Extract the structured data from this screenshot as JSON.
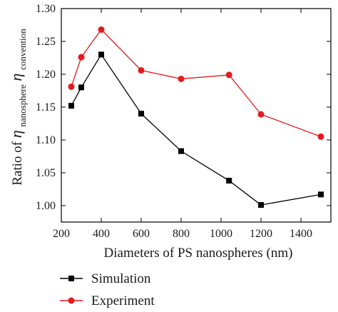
{
  "chart_data": {
    "type": "line",
    "xlabel": "Diameters of PS nanospheres (nm)",
    "ylabel": {
      "prefix": "Ratio of ",
      "eta": "η",
      "sub1": "nanosphere",
      "sub2": "convention"
    },
    "xlim": [
      200,
      1550
    ],
    "ylim": [
      0.975,
      1.3
    ],
    "xticks": [
      200,
      400,
      600,
      800,
      1000,
      1200,
      1400
    ],
    "yticks": [
      1.0,
      1.05,
      1.1,
      1.15,
      1.2,
      1.25,
      1.3
    ],
    "ytick_labels": [
      "1.00",
      "1.05",
      "1.10",
      "1.15",
      "1.20",
      "1.25",
      "1.30"
    ],
    "grid": false,
    "legend_placement": "below",
    "series": [
      {
        "name": "Simulation",
        "color": "#000000",
        "marker": "square",
        "x": [
          250,
          300,
          400,
          600,
          800,
          1040,
          1200,
          1500
        ],
        "y": [
          1.152,
          1.18,
          1.23,
          1.14,
          1.083,
          1.038,
          1.001,
          1.017
        ]
      },
      {
        "name": "Experiment",
        "color": "#e41a1c",
        "marker": "circle",
        "x": [
          250,
          300,
          400,
          600,
          800,
          1040,
          1200,
          1500
        ],
        "y": [
          1.181,
          1.226,
          1.268,
          1.206,
          1.193,
          1.199,
          1.139,
          1.105
        ]
      }
    ]
  }
}
